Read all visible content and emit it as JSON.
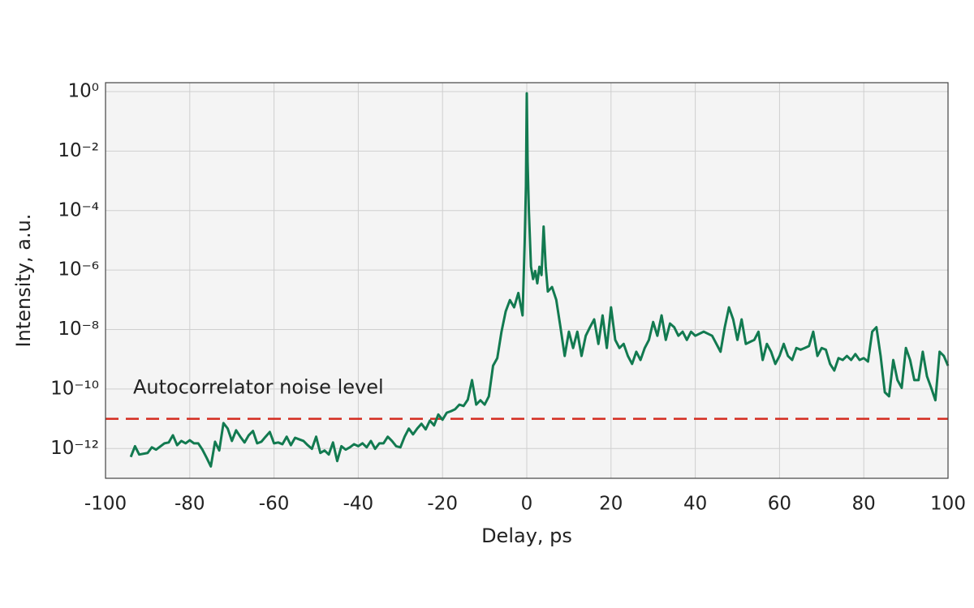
{
  "chart_data": {
    "type": "line",
    "xlabel": "Delay, ps",
    "ylabel": "Intensity, a.u.",
    "yscale": "log",
    "grid": true,
    "xlim": [
      -100,
      100
    ],
    "xticks": [
      -100,
      -80,
      -60,
      -40,
      -20,
      0,
      20,
      40,
      60,
      80,
      100
    ],
    "ylim": [
      1e-13,
      2
    ],
    "yticks": [
      {
        "value": 1,
        "label": "10⁰"
      },
      {
        "value": 0.01,
        "label": "10⁻²"
      },
      {
        "value": 0.0001,
        "label": "10⁻⁴"
      },
      {
        "value": 1e-06,
        "label": "10⁻⁶"
      },
      {
        "value": 1e-08,
        "label": "10⁻⁸"
      },
      {
        "value": 1e-10,
        "label": "10⁻¹⁰"
      },
      {
        "value": 1e-12,
        "label": "10⁻¹²"
      }
    ],
    "hlines": [
      {
        "y": 1e-11,
        "color": "#d42a1e",
        "label": "Autocorrelator noise level"
      }
    ],
    "x": [
      -94,
      -93,
      -92,
      -90,
      -89,
      -88,
      -86,
      -85,
      -84,
      -83,
      -82,
      -81,
      -80,
      -79,
      -78,
      -77,
      -76,
      -75,
      -74,
      -73,
      -72,
      -71,
      -70,
      -69,
      -68,
      -67,
      -66,
      -65,
      -64,
      -63,
      -62,
      -61,
      -60,
      -59,
      -58,
      -57,
      -56,
      -55,
      -53,
      -52,
      -51,
      -50,
      -49,
      -48,
      -47,
      -46,
      -45,
      -44,
      -43,
      -42,
      -41,
      -40,
      -39,
      -38,
      -37,
      -36,
      -35,
      -34,
      -33,
      -32,
      -31,
      -30,
      -29,
      -28,
      -27,
      -26,
      -25,
      -24,
      -23,
      -22,
      -21,
      -20,
      -19,
      -18,
      -17,
      -16,
      -15,
      -14,
      -13,
      -12,
      -11,
      -10,
      -9,
      -8,
      -7,
      -6,
      -5,
      -4,
      -3,
      -2,
      -1,
      -0.5,
      -0.2,
      0,
      0.2,
      0.5,
      1,
      1.5,
      2,
      2.5,
      3,
      3.5,
      4,
      4.5,
      5,
      6,
      7,
      8,
      9,
      10,
      11,
      12,
      13,
      14,
      15,
      16,
      17,
      18,
      19,
      20,
      21,
      22,
      23,
      24,
      25,
      26,
      27,
      28,
      29,
      30,
      31,
      32,
      33,
      34,
      35,
      36,
      37,
      38,
      39,
      40,
      42,
      44,
      46,
      47,
      48,
      49,
      50,
      51,
      52,
      54,
      55,
      56,
      57,
      58,
      59,
      60,
      61,
      62,
      63,
      64,
      65,
      66,
      67,
      68,
      69,
      70,
      71,
      72,
      73,
      74,
      75,
      76,
      77,
      78,
      79,
      80,
      81,
      82,
      83,
      84,
      85,
      86,
      87,
      88,
      89,
      90,
      91,
      92,
      93,
      94,
      95,
      96,
      97,
      98,
      99,
      100
    ],
    "series": [
      {
        "color": "#127a50",
        "values": [
          5.2e-13,
          1.2e-12,
          6.3e-13,
          7.1e-13,
          1.1e-12,
          9.2e-13,
          1.5e-12,
          1.6e-12,
          2.8e-12,
          1.3e-12,
          1.8e-12,
          1.5e-12,
          1.9e-12,
          1.5e-12,
          1.5e-12,
          9.2e-13,
          4.9e-13,
          2.5e-13,
          1.7e-12,
          8.6e-13,
          7.2e-12,
          4.7e-12,
          1.8e-12,
          4.1e-12,
          2.5e-12,
          1.6e-12,
          2.8e-12,
          3.9e-12,
          1.5e-12,
          1.7e-12,
          2.5e-12,
          3.6e-12,
          1.5e-12,
          1.6e-12,
          1.4e-12,
          2.5e-12,
          1.3e-12,
          2.3e-12,
          1.8e-12,
          1.3e-12,
          9.8e-13,
          2.5e-12,
          7.1e-13,
          8.6e-13,
          6.3e-13,
          1.6e-12,
          3.8e-13,
          1.2e-12,
          9.2e-13,
          1.1e-12,
          1.4e-12,
          1.2e-12,
          1.5e-12,
          1.1e-12,
          1.8e-12,
          9.8e-13,
          1.5e-12,
          1.5e-12,
          2.5e-12,
          1.8e-12,
          1.2e-12,
          1.1e-12,
          2.5e-12,
          4.7e-12,
          3e-12,
          4.7e-12,
          6.8e-12,
          4.4e-12,
          8.7e-12,
          6e-12,
          1.4e-11,
          9.3e-12,
          1.6e-11,
          1.8e-11,
          2.1e-11,
          3e-11,
          2.7e-11,
          4.4e-11,
          2e-10,
          3e-11,
          4.2e-11,
          3e-11,
          5.7e-11,
          6.1e-10,
          1.1e-09,
          8.5e-09,
          4.1e-08,
          9.8e-08,
          5.6e-08,
          1.7e-07,
          3e-08,
          8.3e-06,
          0.00066,
          0.88,
          0.0043,
          0.0001,
          1.3e-06,
          5e-07,
          9.3e-07,
          3.6e-07,
          1.3e-06,
          6.8e-07,
          2.9e-05,
          1.3e-06,
          1.9e-07,
          2.7e-07,
          1e-07,
          1.2e-08,
          1.3e-09,
          8.5e-09,
          2.4e-09,
          8.5e-09,
          1.3e-09,
          6.2e-09,
          1.2e-08,
          2.2e-08,
          3.3e-09,
          3e-08,
          2.4e-09,
          5.6e-08,
          4.5e-09,
          2.4e-09,
          3.3e-09,
          1.3e-09,
          7e-10,
          1.8e-09,
          9.5e-10,
          2.4e-09,
          4.5e-09,
          1.8e-08,
          6.2e-09,
          3e-08,
          4.5e-09,
          1.6e-08,
          1.2e-08,
          6.2e-09,
          8.5e-09,
          4.5e-09,
          8.5e-09,
          6.2e-09,
          8.5e-09,
          6.2e-09,
          1.8e-09,
          1.2e-08,
          5.6e-08,
          2.2e-08,
          4.5e-09,
          2.2e-08,
          3.3e-09,
          4.5e-09,
          8.5e-09,
          9.5e-10,
          3.3e-09,
          1.8e-09,
          7e-10,
          1.3e-09,
          3.3e-09,
          1.3e-09,
          9.5e-10,
          2.4e-09,
          2.1e-09,
          2.4e-09,
          2.8e-09,
          8.5e-09,
          1.3e-09,
          2.4e-09,
          2.1e-09,
          7e-10,
          4.2e-10,
          1.1e-09,
          9.5e-10,
          1.3e-09,
          9.5e-10,
          1.5e-09,
          9.5e-10,
          1.1e-09,
          8.4e-10,
          8.5e-09,
          1.2e-08,
          1.3e-09,
          7.8e-11,
          5.7e-11,
          9.5e-10,
          2e-10,
          1.1e-10,
          2.4e-09,
          9.5e-10,
          2e-10,
          2e-10,
          1.8e-09,
          2.7e-10,
          1.1e-10,
          4.2e-11,
          1.8e-09,
          1.3e-09,
          6.1e-10
        ]
      }
    ]
  }
}
